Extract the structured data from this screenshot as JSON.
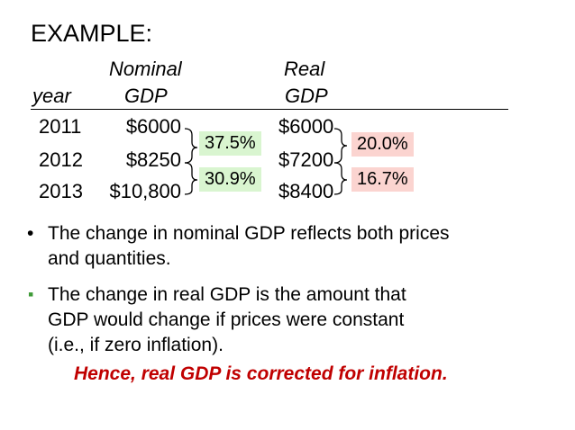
{
  "slide": {
    "title": "EXAMPLE:",
    "table": {
      "headers": {
        "year": "year",
        "nominal_line1": "Nominal",
        "nominal_line2": "GDP",
        "real_line1": "Real",
        "real_line2": "GDP"
      },
      "rows": [
        {
          "year": "2011",
          "nominal": "$6000",
          "real": "$6000"
        },
        {
          "year": "2012",
          "nominal": "$8250",
          "real": "$7200"
        },
        {
          "year": "2013",
          "nominal": "$10,800",
          "real": "$8400"
        }
      ],
      "nominal_changes": [
        "37.5%",
        "30.9%"
      ],
      "real_changes": [
        "20.0%",
        "16.7%"
      ]
    },
    "bullet1": {
      "marker": "•",
      "line1": "The change in nominal GDP reflects both prices",
      "line2": "and quantities."
    },
    "bullet2": {
      "marker": "▪",
      "line1": "The change in real GDP is the amount that",
      "line2": "GDP would change if prices were constant",
      "line3": "(i.e., if zero inflation)."
    },
    "hence": "Hence, real GDP is corrected for inflation.",
    "colors": {
      "hence_text": "#c00000",
      "green_box": "#d9f5d0",
      "pink_box": "#fbd4d0",
      "bullet2_marker": "#3f9b38"
    }
  }
}
